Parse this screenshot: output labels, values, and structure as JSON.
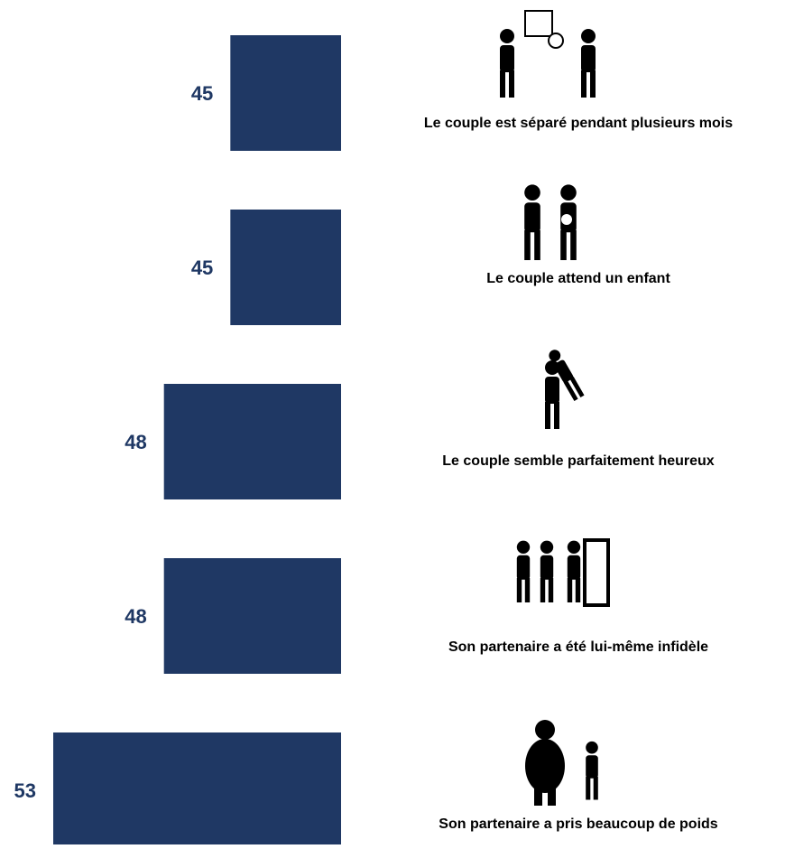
{
  "chart_data": {
    "type": "bar",
    "orientation": "horizontal",
    "categories": [
      "Le couple est séparé pendant plusieurs mois",
      "Le couple attend un enfant",
      "Le couple semble parfaitement heureux",
      "Son partenaire a été lui-même infidèle",
      "Son partenaire a pris beaucoup de poids"
    ],
    "values": [
      45,
      45,
      48,
      48,
      53
    ],
    "color": "#1f3864",
    "xlim": [
      40,
      53
    ]
  }
}
